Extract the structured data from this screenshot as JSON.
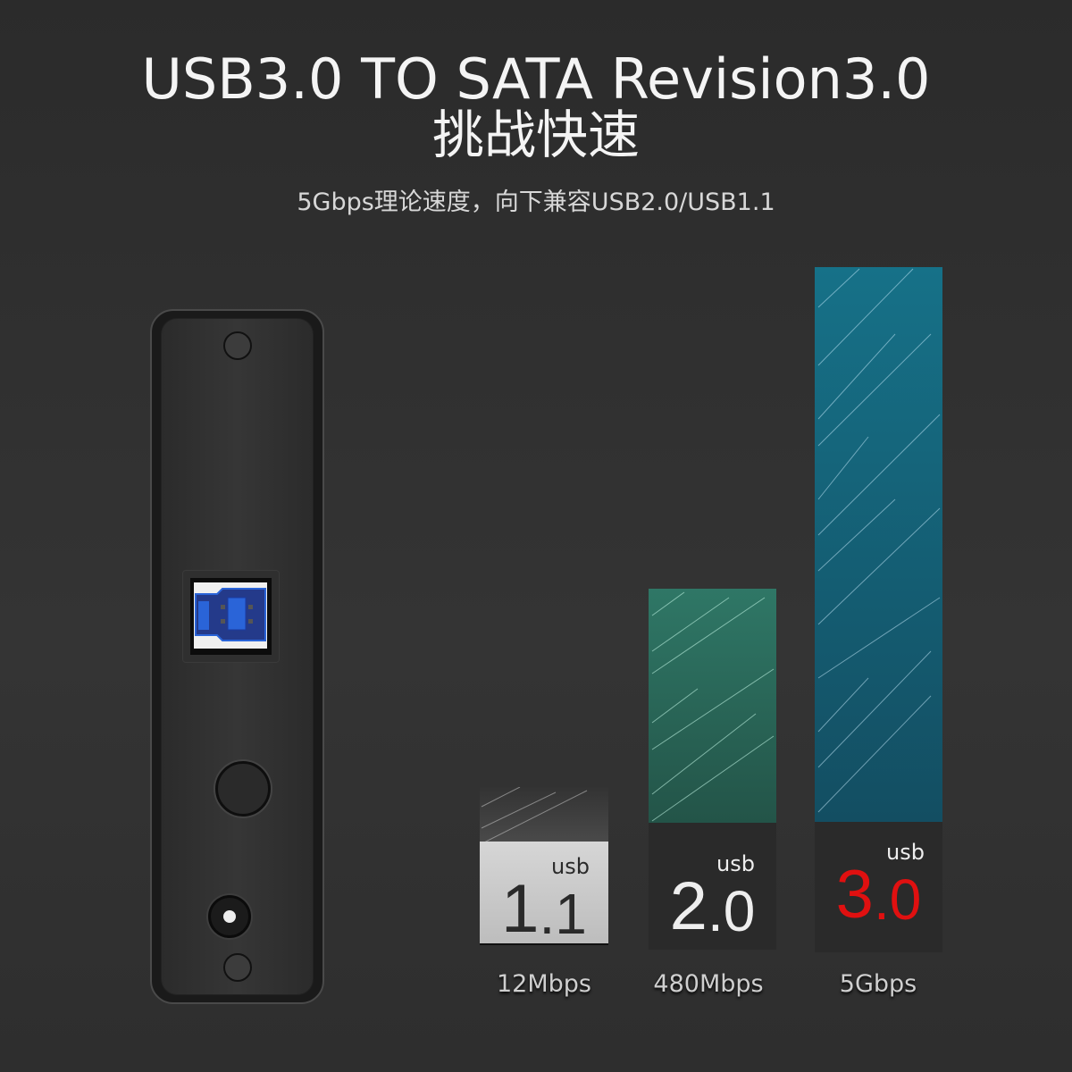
{
  "header": {
    "title": "USB3.0 TO SATA Revision3.0",
    "title_cn": "挑战快速",
    "subtitle": "5Gbps理论速度，向下兼容USB2.0/USB1.1"
  },
  "comparison": [
    {
      "prefix": "usb",
      "major": "1",
      "minor": ".1",
      "speed": "12Mbps",
      "bar_color": "#444444",
      "label_bg": "#c8c8c8",
      "text_color": "#2a2a2a"
    },
    {
      "prefix": "usb",
      "major": "2",
      "minor": ".0",
      "speed": "480Mbps",
      "bar_color": "#24594f",
      "label_bg": "#2a2a2a",
      "text_color": "#eeeeee"
    },
    {
      "prefix": "usb",
      "major": "3",
      "minor": ".0",
      "speed": "5Gbps",
      "bar_color": "#14556b",
      "label_bg": "#2a2a2a",
      "text_color": "#e01010"
    }
  ],
  "device": {
    "port_color": "#2a64d8"
  }
}
